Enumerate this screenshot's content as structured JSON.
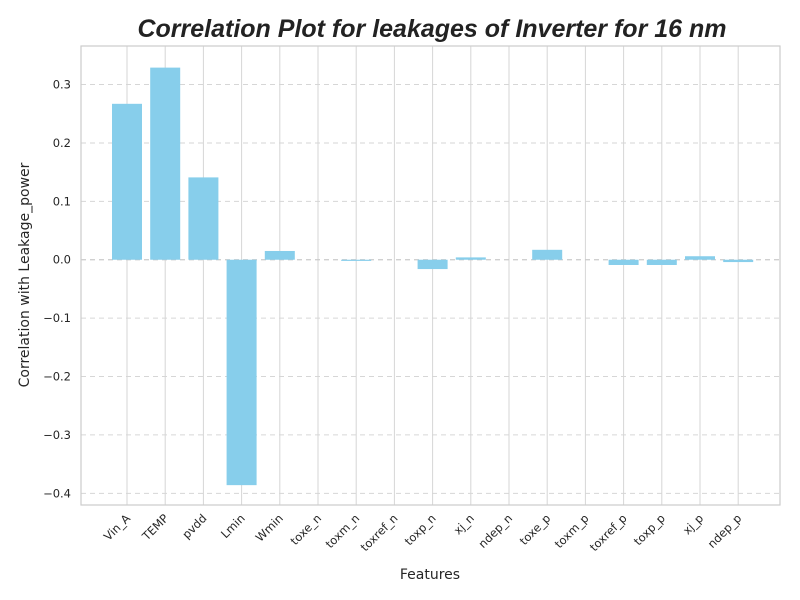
{
  "chart_data": {
    "type": "bar",
    "title": "Correlation Plot for leakages of Inverter for 16 nm",
    "xlabel": "Features",
    "ylabel": "Correlation with Leakage_power",
    "categories": [
      "Vin_A",
      "TEMP",
      "pvdd",
      "Lmin",
      "Wmin",
      "toxe_n",
      "toxm_n",
      "toxref_n",
      "toxp_n",
      "xj_n",
      "ndep_n",
      "toxe_p",
      "toxm_p",
      "toxref_p",
      "toxp_p",
      "xj_p",
      "ndep_p"
    ],
    "values": [
      0.267,
      0.329,
      0.141,
      -0.386,
      0.015,
      0.0,
      -0.002,
      0.0,
      -0.016,
      0.004,
      0.0,
      0.017,
      0.0,
      -0.009,
      -0.009,
      0.006,
      -0.004
    ],
    "yticks": [
      -0.4,
      -0.3,
      -0.2,
      -0.1,
      0.0,
      0.1,
      0.2,
      0.3
    ],
    "ytick_labels": [
      "−0.4",
      "−0.3",
      "−0.2",
      "−0.1",
      "0.0",
      "0.1",
      "0.2",
      "0.3"
    ],
    "ylim": [
      -0.42,
      0.366
    ],
    "bar_color": "#87ceeb",
    "grid": true
  }
}
